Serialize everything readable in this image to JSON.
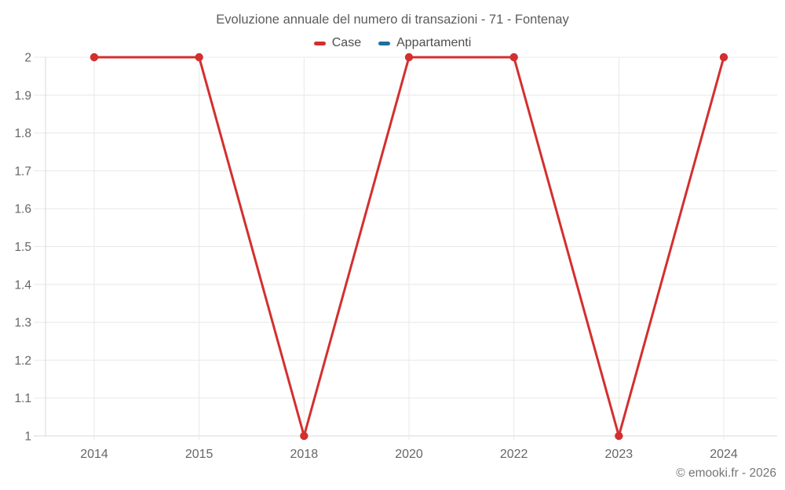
{
  "page": {
    "copyright": "© emooki.fr - 2026"
  },
  "chart_data": {
    "type": "line",
    "title": "Evoluzione annuale del numero di transazioni - 71 - Fontenay",
    "categories": [
      "2014",
      "2015",
      "2018",
      "2020",
      "2022",
      "2023",
      "2024"
    ],
    "series": [
      {
        "name": "Case",
        "color": "#d32f2f",
        "values": [
          2,
          2,
          1,
          2,
          2,
          1,
          2
        ]
      },
      {
        "name": "Appartamenti",
        "color": "#1c6fa3",
        "values": [
          null,
          null,
          null,
          null,
          null,
          null,
          null
        ]
      }
    ],
    "xlabel": "",
    "ylabel": "",
    "ylim": [
      1,
      2
    ],
    "ytick_step": 0.1,
    "grid": true,
    "legend_position": "top",
    "colors": {
      "grid_line": "#e8e8e8",
      "axis_line": "#d9d9d9",
      "tick_label": "#666666"
    }
  }
}
